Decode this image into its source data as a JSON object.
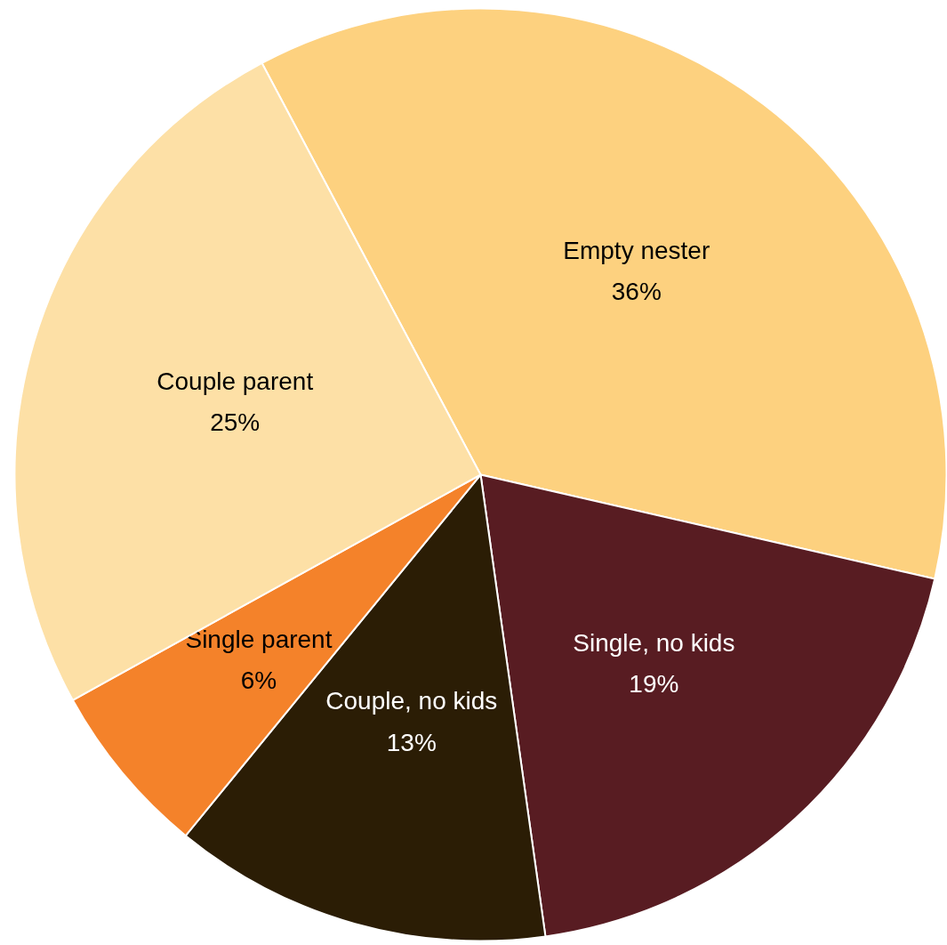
{
  "chart_data": {
    "type": "pie",
    "categories": [
      "Empty nester",
      "Single, no kids",
      "Couple, no kids",
      "Single parent",
      "Couple parent"
    ],
    "values": [
      36,
      19,
      13,
      6,
      25
    ],
    "value_labels": [
      "36%",
      "19%",
      "13%",
      "6%",
      "25%"
    ],
    "colors": [
      "#fdd17f",
      "#581c22",
      "#2b1d05",
      "#f4822a",
      "#fde0a6"
    ],
    "legend": false
  }
}
